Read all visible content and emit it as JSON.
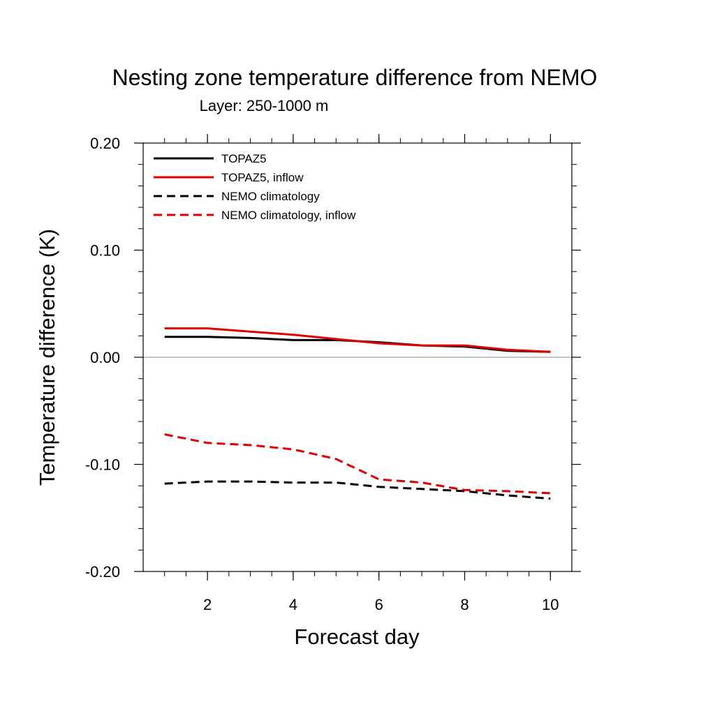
{
  "chart_data": {
    "type": "line",
    "title": "Nesting zone temperature difference from NEMO",
    "subtitle": "Layer: 250-1000 m",
    "xlabel": "Forecast day",
    "ylabel": "Temperature difference (K)",
    "xlim": [
      0.5,
      10.5
    ],
    "ylim": [
      -0.2,
      0.2
    ],
    "x_ticks": [
      2,
      4,
      6,
      8,
      10
    ],
    "x_tick_labels": [
      "2",
      "4",
      "6",
      "8",
      "10"
    ],
    "y_ticks": [
      -0.2,
      -0.1,
      0.0,
      0.1,
      0.2
    ],
    "y_tick_labels": [
      "-0.20",
      "-0.10",
      "0.00",
      "0.10",
      "0.20"
    ],
    "zero_line": true,
    "grid": false,
    "legend_position": "top-left",
    "x": [
      1,
      2,
      3,
      4,
      5,
      6,
      7,
      8,
      9,
      10
    ],
    "series": [
      {
        "name": "TOPAZ5",
        "color": "#000000",
        "dash": "solid",
        "values": [
          0.019,
          0.019,
          0.018,
          0.016,
          0.016,
          0.014,
          0.011,
          0.01,
          0.006,
          0.005
        ]
      },
      {
        "name": "TOPAZ5, inflow",
        "color": "#e00000",
        "dash": "solid",
        "values": [
          0.027,
          0.027,
          0.024,
          0.021,
          0.017,
          0.013,
          0.011,
          0.011,
          0.007,
          0.005
        ]
      },
      {
        "name": "NEMO climatology",
        "color": "#000000",
        "dash": "dashed",
        "values": [
          -0.118,
          -0.116,
          -0.116,
          -0.117,
          -0.117,
          -0.121,
          -0.123,
          -0.125,
          -0.129,
          -0.132
        ]
      },
      {
        "name": "NEMO climatology, inflow",
        "color": "#e00000",
        "dash": "dashed",
        "values": [
          -0.072,
          -0.08,
          -0.082,
          -0.086,
          -0.095,
          -0.114,
          -0.117,
          -0.124,
          -0.125,
          -0.127
        ]
      }
    ]
  }
}
